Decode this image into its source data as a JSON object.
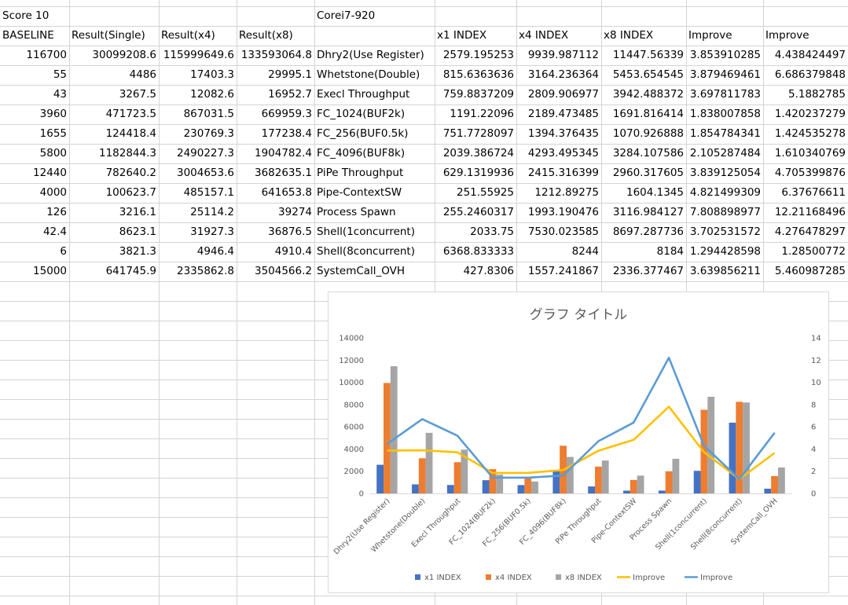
{
  "sheet": {
    "a1": "Score 10",
    "e1": "Corei7-920",
    "headers": [
      "BASELINE",
      "Result(Single)",
      "Result(x4)",
      "Result(x8)",
      "",
      "x1 INDEX",
      "x4 INDEX",
      "x8 INDEX",
      "Improve",
      "Improve"
    ],
    "rows": [
      [
        "116700",
        "30099208.6",
        "115999649.6",
        "133593064.8",
        "Dhry2(Use Register)",
        "2579.195253",
        "9939.987112",
        "11447.56339",
        "3.853910285",
        "4.438424497"
      ],
      [
        "55",
        "4486",
        "17403.3",
        "29995.1",
        "Whetstone(Double)",
        "815.6363636",
        "3164.236364",
        "5453.654545",
        "3.879469461",
        "6.686379848"
      ],
      [
        "43",
        "3267.5",
        "12082.6",
        "16952.7",
        "Execl Throughput",
        "759.8837209",
        "2809.906977",
        "3942.488372",
        "3.697811783",
        "5.1882785"
      ],
      [
        "3960",
        "471723.5",
        "867031.5",
        "669959.3",
        "FC_1024(BUF2k)",
        "1191.22096",
        "2189.473485",
        "1691.816414",
        "1.838007858",
        "1.420237279"
      ],
      [
        "1655",
        "124418.4",
        "230769.3",
        "177238.4",
        "FC_256(BUF0.5k)",
        "751.7728097",
        "1394.376435",
        "1070.926888",
        "1.854784341",
        "1.424535278"
      ],
      [
        "5800",
        "1182844.3",
        "2490227.3",
        "1904782.4",
        "FC_4096(BUF8k)",
        "2039.386724",
        "4293.495345",
        "3284.107586",
        "2.105287484",
        "1.610340769"
      ],
      [
        "12440",
        "782640.2",
        "3004653.6",
        "3682635.1",
        "PiPe Throughput",
        "629.1319936",
        "2415.316399",
        "2960.317605",
        "3.839125054",
        "4.705399876"
      ],
      [
        "4000",
        "100623.7",
        "485157.1",
        "641653.8",
        "Pipe-ContextSW",
        "251.55925",
        "1212.89275",
        "1604.1345",
        "4.821499309",
        "6.37676611"
      ],
      [
        "126",
        "3216.1",
        "25114.2",
        "39274",
        "Process Spawn",
        "255.2460317",
        "1993.190476",
        "3116.984127",
        "7.808898977",
        "12.21168496"
      ],
      [
        "42.4",
        "8623.1",
        "31927.3",
        "36876.5",
        "Shell(1concurrent)",
        "2033.75",
        "7530.023585",
        "8697.287736",
        "3.702531572",
        "4.276478297"
      ],
      [
        "6",
        "3821.3",
        "4946.4",
        "4910.4",
        "Shell(8concurrent)",
        "6368.833333",
        "8244",
        "8184",
        "1.294428598",
        "1.28500772"
      ],
      [
        "15000",
        "641745.9",
        "2335862.8",
        "3504566.2",
        "SystemCall_OVH",
        "427.8306",
        "1557.241867",
        "2336.377467",
        "3.639856211",
        "5.460987285"
      ]
    ]
  },
  "chart_data": {
    "type": "bar",
    "title": "グラフ タイトル",
    "categories": [
      "Dhry2(Use Register)",
      "Whetstone(Double)",
      "Execl Throughput",
      "FC_1024(BUF2k)",
      "FC_256(BUF0.5k)",
      "FC_4096(BUF8k)",
      "PiPe Throughput",
      "Pipe-ContextSW",
      "Process Spawn",
      "Shell(1concurrent)",
      "Shell(8concurrent)",
      "SystemCall_OVH"
    ],
    "series": [
      {
        "name": "x1 INDEX",
        "type": "bar",
        "axis": "left",
        "color": "#4472c4",
        "values": [
          2579.195253,
          815.6363636,
          759.8837209,
          1191.22096,
          751.7728097,
          2039.386724,
          629.1319936,
          251.55925,
          255.2460317,
          2033.75,
          6368.833333,
          427.8306
        ]
      },
      {
        "name": "x4 INDEX",
        "type": "bar",
        "axis": "left",
        "color": "#ed7d31",
        "values": [
          9939.987112,
          3164.236364,
          2809.906977,
          2189.473485,
          1394.376435,
          4293.495345,
          2415.316399,
          1212.89275,
          1993.190476,
          7530.023585,
          8244,
          1557.241867
        ]
      },
      {
        "name": "x8 INDEX",
        "type": "bar",
        "axis": "left",
        "color": "#a5a5a5",
        "values": [
          11447.56339,
          5453.654545,
          3942.488372,
          1691.816414,
          1070.926888,
          3284.107586,
          2960.317605,
          1604.1345,
          3116.984127,
          8697.287736,
          8184,
          2336.377467
        ]
      },
      {
        "name": "Improve",
        "type": "line",
        "axis": "right",
        "color": "#ffc000",
        "values": [
          3.853910285,
          3.879469461,
          3.697811783,
          1.838007858,
          1.854784341,
          2.105287484,
          3.839125054,
          4.821499309,
          7.808898977,
          3.702531572,
          1.294428598,
          3.639856211
        ]
      },
      {
        "name": "Improve",
        "type": "line",
        "axis": "right",
        "color": "#5b9bd5",
        "values": [
          4.438424497,
          6.686379848,
          5.1882785,
          1.420237279,
          1.424535278,
          1.610340769,
          4.705399876,
          6.37676611,
          12.21168496,
          4.276478297,
          1.28500772,
          5.460987285
        ]
      }
    ],
    "y_left": {
      "min": 0,
      "max": 14000,
      "step": 2000,
      "ticks": [
        "0",
        "2000",
        "4000",
        "6000",
        "8000",
        "10000",
        "12000",
        "14000"
      ]
    },
    "y_right": {
      "min": 0,
      "max": 14,
      "step": 2,
      "ticks": [
        "0",
        "2",
        "4",
        "6",
        "8",
        "10",
        "12",
        "14"
      ]
    },
    "legend_position": "bottom",
    "grid": false
  }
}
